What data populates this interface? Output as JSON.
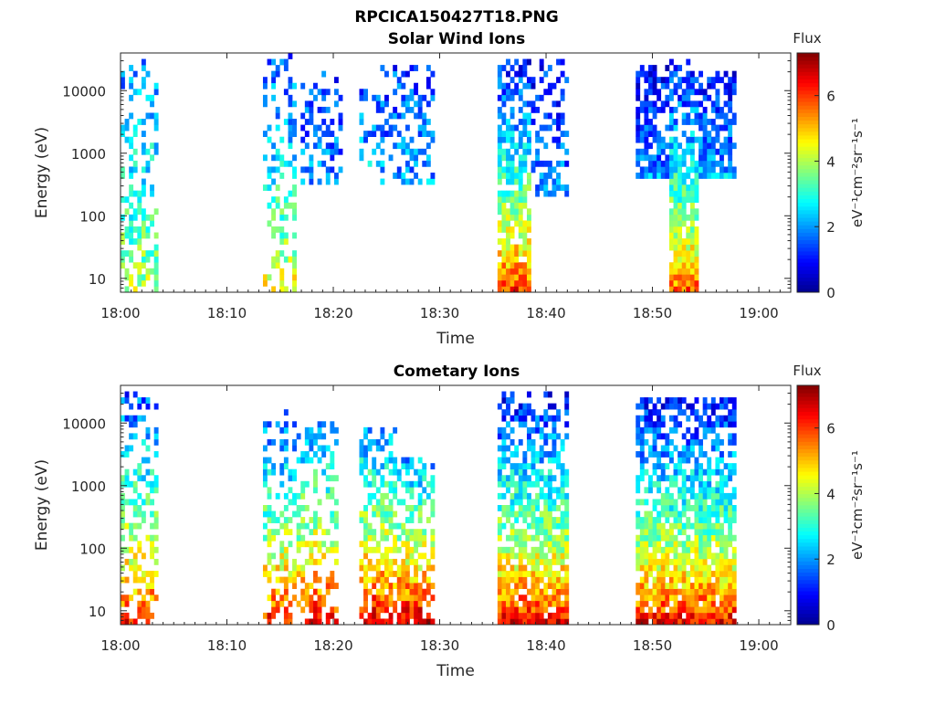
{
  "figure_title": "RPCICA150427T18.PNG",
  "colormap": [
    "#00008f",
    "#0000ff",
    "#0080ff",
    "#00ffff",
    "#80ff80",
    "#ffff00",
    "#ff8000",
    "#ff0000",
    "#800000"
  ],
  "chart_data": [
    {
      "type": "heatmap",
      "title": "Solar Wind Ions",
      "xlabel": "Time",
      "ylabel": "Energy (eV)",
      "y_scale": "log",
      "xlim": [
        "18:00",
        "19:03"
      ],
      "ylim": [
        6,
        40000
      ],
      "x_ticks": [
        "18:00",
        "18:10",
        "18:20",
        "18:30",
        "18:40",
        "18:50",
        "19:00"
      ],
      "y_ticks": [
        "10",
        "100",
        "1000",
        "10000"
      ],
      "colorbar": {
        "label": "Flux",
        "unit": "eV⁻¹cm⁻²sr⁻¹s⁻¹",
        "range": [
          0,
          7.3
        ],
        "ticks": [
          "0",
          "2",
          "4",
          "6"
        ]
      },
      "segments": [
        {
          "start": "18:00",
          "end": "18:03.5",
          "emin": 6,
          "emax": 30000,
          "low_flux": 4.2,
          "high_flux": 1.8,
          "density": 0.5
        },
        {
          "start": "18:13.5",
          "end": "18:16.5",
          "emin": 6,
          "emax": 40000,
          "low_flux": 4.8,
          "high_flux": 1.5,
          "density": 0.45
        },
        {
          "start": "18:17",
          "end": "18:21",
          "emin": 300,
          "emax": 20000,
          "low_flux": 2.0,
          "high_flux": 1.4,
          "density": 0.45
        },
        {
          "start": "18:22.5",
          "end": "18:24.5",
          "emin": 500,
          "emax": 10000,
          "low_flux": 2.4,
          "high_flux": 1.6,
          "density": 0.3
        },
        {
          "start": "18:24.5",
          "end": "18:29.5",
          "emin": 300,
          "emax": 25000,
          "low_flux": 2.2,
          "high_flux": 1.4,
          "density": 0.5
        },
        {
          "start": "18:35.5",
          "end": "18:38.5",
          "emin": 6,
          "emax": 35000,
          "low_flux": 6.3,
          "high_flux": 1.0,
          "density": 0.95
        },
        {
          "start": "18:38.5",
          "end": "18:42",
          "emin": 200,
          "emax": 30000,
          "low_flux": 1.9,
          "high_flux": 1.1,
          "density": 0.5
        },
        {
          "start": "18:48.5",
          "end": "18:51.5",
          "emin": 400,
          "emax": 28000,
          "low_flux": 2.1,
          "high_flux": 0.9,
          "density": 0.85
        },
        {
          "start": "18:51.5",
          "end": "18:54.5",
          "emin": 6,
          "emax": 35000,
          "low_flux": 6.0,
          "high_flux": 0.9,
          "density": 1.0
        },
        {
          "start": "18:54.5",
          "end": "18:58",
          "emin": 400,
          "emax": 20000,
          "low_flux": 2.3,
          "high_flux": 1.0,
          "density": 0.9
        }
      ]
    },
    {
      "type": "heatmap",
      "title": "Cometary Ions",
      "xlabel": "Time",
      "ylabel": "Energy (eV)",
      "y_scale": "log",
      "xlim": [
        "18:00",
        "19:03"
      ],
      "ylim": [
        6,
        40000
      ],
      "x_ticks": [
        "18:00",
        "18:10",
        "18:20",
        "18:30",
        "18:40",
        "18:50",
        "19:00"
      ],
      "y_ticks": [
        "10",
        "100",
        "1000",
        "10000"
      ],
      "colorbar": {
        "label": "Flux",
        "unit": "eV⁻¹cm⁻²sr⁻¹s⁻¹",
        "range": [
          0,
          7.3
        ],
        "ticks": [
          "0",
          "2",
          "4",
          "6"
        ]
      },
      "segments": [
        {
          "start": "18:00",
          "end": "18:03.5",
          "emin": 6,
          "emax": 30000,
          "low_flux": 6.5,
          "high_flux": 1.5,
          "density": 0.6
        },
        {
          "start": "18:13.5",
          "end": "18:17",
          "emin": 6,
          "emax": 15000,
          "low_flux": 6.6,
          "high_flux": 1.5,
          "density": 0.55
        },
        {
          "start": "18:17",
          "end": "18:20.5",
          "emin": 6,
          "emax": 10000,
          "low_flux": 6.8,
          "high_flux": 2.0,
          "density": 0.6
        },
        {
          "start": "18:22.5",
          "end": "18:26",
          "emin": 6,
          "emax": 8000,
          "low_flux": 7.0,
          "high_flux": 2.0,
          "density": 0.75
        },
        {
          "start": "18:26",
          "end": "18:29.5",
          "emin": 6,
          "emax": 3000,
          "low_flux": 7.1,
          "high_flux": 2.0,
          "density": 0.8
        },
        {
          "start": "18:35.5",
          "end": "18:42",
          "emin": 6,
          "emax": 30000,
          "low_flux": 6.8,
          "high_flux": 1.0,
          "density": 0.9
        },
        {
          "start": "18:48.5",
          "end": "18:58",
          "emin": 6,
          "emax": 28000,
          "low_flux": 6.7,
          "high_flux": 0.9,
          "density": 0.95
        }
      ]
    }
  ]
}
